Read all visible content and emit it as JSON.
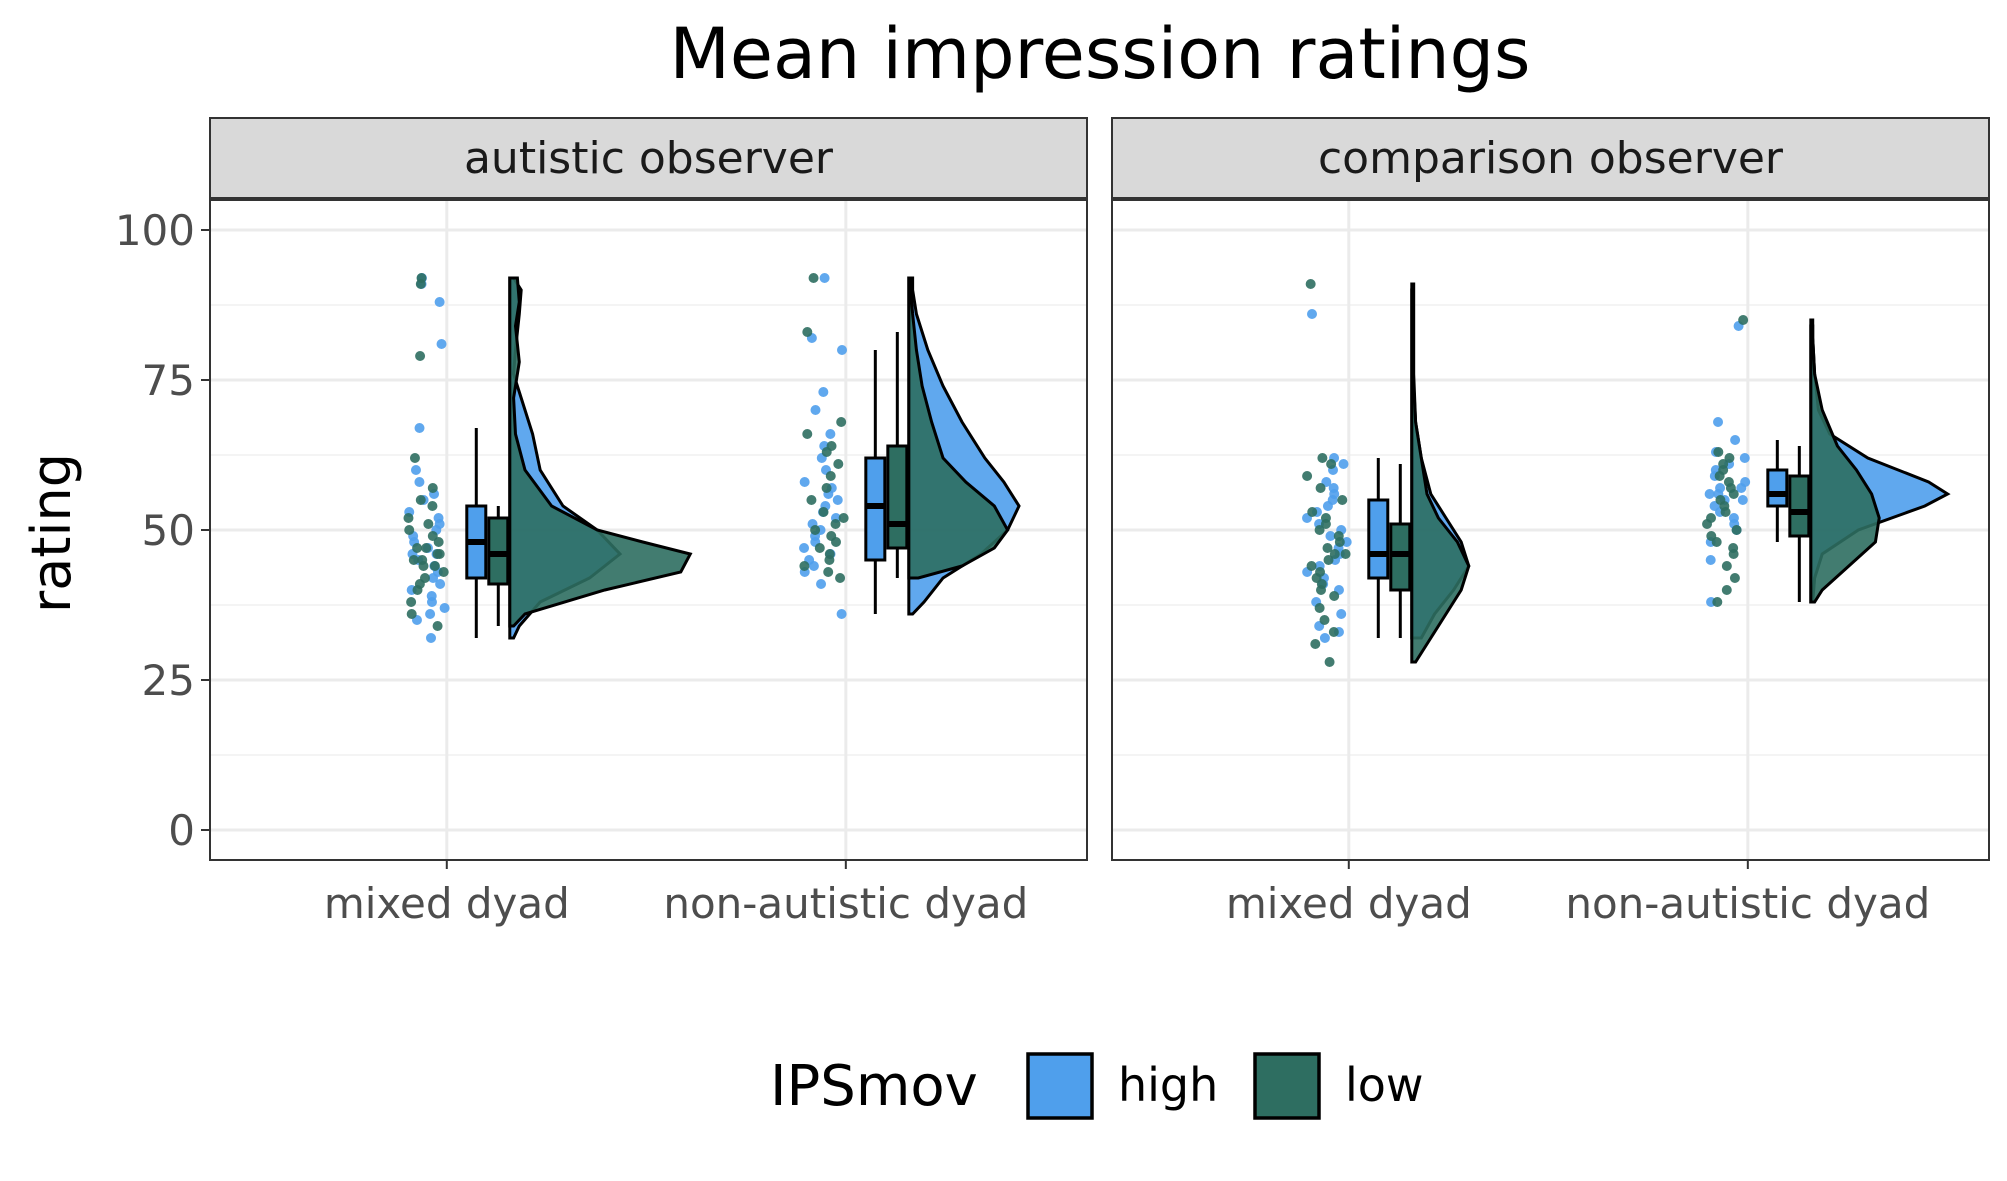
{
  "chart_data": {
    "type": "raincloud",
    "title": "Mean impression ratings",
    "ylabel": "rating",
    "xlabel": "",
    "ylim": [
      -5,
      105
    ],
    "yticks": [
      0,
      25,
      50,
      75,
      100
    ],
    "y_tick_labels": [
      "0",
      "25",
      "50",
      "75",
      "100"
    ],
    "categories": [
      "mixed dyad",
      "non-autistic dyad"
    ],
    "grid": true,
    "legend": {
      "title": "IPSmov",
      "placement": "bottom",
      "entries": [
        {
          "name": "high",
          "color": "#4f9fec"
        },
        {
          "name": "low",
          "color": "#2e6e61"
        }
      ]
    },
    "panels": [
      {
        "label": "autistic observer",
        "groups": [
          {
            "category": "mixed dyad",
            "series": [
              {
                "name": "high",
                "box": {
                  "min": 32,
                  "q1": 42,
                  "median": 48,
                  "q3": 54,
                  "max": 67
                },
                "density": [
                  [
                    32,
                    0.02
                  ],
                  [
                    34,
                    0.05
                  ],
                  [
                    38,
                    0.16
                  ],
                  [
                    42,
                    0.42
                  ],
                  [
                    46,
                    0.58
                  ],
                  [
                    50,
                    0.46
                  ],
                  [
                    54,
                    0.28
                  ],
                  [
                    60,
                    0.16
                  ],
                  [
                    66,
                    0.12
                  ],
                  [
                    72,
                    0.06
                  ],
                  [
                    76,
                    0.02
                  ],
                  [
                    80,
                    0.03
                  ],
                  [
                    86,
                    0.05
                  ],
                  [
                    90,
                    0.06
                  ],
                  [
                    92,
                    0.02
                  ]
                ],
                "points": [
                  32,
                  35,
                  36,
                  37,
                  38,
                  39,
                  40,
                  41,
                  42,
                  43,
                  44,
                  45,
                  46,
                  46,
                  47,
                  48,
                  49,
                  50,
                  51,
                  52,
                  53,
                  55,
                  56,
                  58,
                  60,
                  67,
                  81,
                  88,
                  91,
                  92
                ]
              },
              {
                "name": "low",
                "box": {
                  "min": 34,
                  "q1": 41,
                  "median": 46,
                  "q3": 52,
                  "max": 54
                },
                "density": [
                  [
                    34,
                    0.02
                  ],
                  [
                    36,
                    0.08
                  ],
                  [
                    40,
                    0.5
                  ],
                  [
                    43,
                    0.9
                  ],
                  [
                    46,
                    0.95
                  ],
                  [
                    48,
                    0.7
                  ],
                  [
                    50,
                    0.46
                  ],
                  [
                    54,
                    0.22
                  ],
                  [
                    60,
                    0.08
                  ],
                  [
                    66,
                    0.03
                  ],
                  [
                    72,
                    0.02
                  ],
                  [
                    78,
                    0.05
                  ],
                  [
                    84,
                    0.03
                  ],
                  [
                    88,
                    0.05
                  ],
                  [
                    92,
                    0.04
                  ]
                ],
                "points": [
                  34,
                  36,
                  38,
                  40,
                  41,
                  42,
                  43,
                  44,
                  44,
                  45,
                  45,
                  46,
                  46,
                  47,
                  47,
                  48,
                  49,
                  50,
                  51,
                  52,
                  54,
                  55,
                  57,
                  62,
                  79,
                  91,
                  92
                ]
              }
            ]
          },
          {
            "category": "non-autistic dyad",
            "series": [
              {
                "name": "high",
                "box": {
                  "min": 36,
                  "q1": 45,
                  "median": 54,
                  "q3": 62,
                  "max": 80
                },
                "density": [
                  [
                    36,
                    0.02
                  ],
                  [
                    38,
                    0.08
                  ],
                  [
                    42,
                    0.18
                  ],
                  [
                    46,
                    0.38
                  ],
                  [
                    50,
                    0.52
                  ],
                  [
                    54,
                    0.58
                  ],
                  [
                    58,
                    0.5
                  ],
                  [
                    62,
                    0.4
                  ],
                  [
                    68,
                    0.28
                  ],
                  [
                    74,
                    0.18
                  ],
                  [
                    80,
                    0.1
                  ],
                  [
                    86,
                    0.04
                  ],
                  [
                    90,
                    0.02
                  ],
                  [
                    92,
                    0.02
                  ]
                ],
                "points": [
                  36,
                  41,
                  43,
                  44,
                  45,
                  46,
                  47,
                  48,
                  49,
                  50,
                  51,
                  52,
                  53,
                  54,
                  55,
                  56,
                  57,
                  58,
                  60,
                  62,
                  64,
                  66,
                  70,
                  73,
                  80,
                  82,
                  92
                ]
              },
              {
                "name": "low",
                "box": {
                  "min": 42,
                  "q1": 47,
                  "median": 51,
                  "q3": 64,
                  "max": 83
                },
                "density": [
                  [
                    42,
                    0.05
                  ],
                  [
                    44,
                    0.28
                  ],
                  [
                    47,
                    0.45
                  ],
                  [
                    50,
                    0.52
                  ],
                  [
                    54,
                    0.45
                  ],
                  [
                    58,
                    0.3
                  ],
                  [
                    62,
                    0.18
                  ],
                  [
                    68,
                    0.12
                  ],
                  [
                    74,
                    0.07
                  ],
                  [
                    80,
                    0.04
                  ],
                  [
                    86,
                    0.02
                  ],
                  [
                    90,
                    0.01
                  ],
                  [
                    92,
                    0.01
                  ]
                ],
                "points": [
                  42,
                  43,
                  44,
                  45,
                  46,
                  47,
                  48,
                  49,
                  50,
                  51,
                  52,
                  53,
                  55,
                  57,
                  59,
                  61,
                  63,
                  64,
                  66,
                  68,
                  83,
                  92
                ]
              }
            ]
          }
        ]
      },
      {
        "label": "comparison observer",
        "groups": [
          {
            "category": "mixed dyad",
            "series": [
              {
                "name": "high",
                "box": {
                  "min": 32,
                  "q1": 42,
                  "median": 46,
                  "q3": 55,
                  "max": 62
                },
                "density": [
                  [
                    32,
                    0.05
                  ],
                  [
                    36,
                    0.12
                  ],
                  [
                    40,
                    0.22
                  ],
                  [
                    44,
                    0.3
                  ],
                  [
                    48,
                    0.26
                  ],
                  [
                    52,
                    0.18
                  ],
                  [
                    56,
                    0.1
                  ],
                  [
                    62,
                    0.05
                  ],
                  [
                    68,
                    0.02
                  ],
                  [
                    74,
                    0.01
                  ],
                  [
                    80,
                    0.005
                  ],
                  [
                    86,
                    0.005
                  ],
                  [
                    90,
                    0.005
                  ]
                ],
                "points": [
                  32,
                  33,
                  34,
                  36,
                  38,
                  40,
                  41,
                  42,
                  43,
                  44,
                  45,
                  46,
                  47,
                  48,
                  49,
                  50,
                  51,
                  52,
                  53,
                  54,
                  55,
                  56,
                  57,
                  58,
                  60,
                  61,
                  62,
                  86
                ]
              },
              {
                "name": "low",
                "box": {
                  "min": 32,
                  "q1": 40,
                  "median": 46,
                  "q3": 51,
                  "max": 61
                },
                "density": [
                  [
                    28,
                    0.02
                  ],
                  [
                    32,
                    0.1
                  ],
                  [
                    36,
                    0.18
                  ],
                  [
                    40,
                    0.26
                  ],
                  [
                    44,
                    0.3
                  ],
                  [
                    48,
                    0.24
                  ],
                  [
                    52,
                    0.14
                  ],
                  [
                    56,
                    0.08
                  ],
                  [
                    62,
                    0.05
                  ],
                  [
                    68,
                    0.02
                  ],
                  [
                    76,
                    0.01
                  ],
                  [
                    86,
                    0.01
                  ],
                  [
                    91,
                    0.01
                  ]
                ],
                "points": [
                  28,
                  31,
                  33,
                  35,
                  37,
                  39,
                  40,
                  41,
                  42,
                  43,
                  44,
                  45,
                  46,
                  46,
                  47,
                  48,
                  49,
                  50,
                  51,
                  52,
                  53,
                  55,
                  57,
                  59,
                  61,
                  62,
                  91
                ]
              }
            ]
          },
          {
            "category": "non-autistic dyad",
            "series": [
              {
                "name": "high",
                "box": {
                  "min": 48,
                  "q1": 54,
                  "median": 56,
                  "q3": 60,
                  "max": 65
                },
                "density": [
                  [
                    38,
                    0.01
                  ],
                  [
                    42,
                    0.02
                  ],
                  [
                    46,
                    0.06
                  ],
                  [
                    50,
                    0.25
                  ],
                  [
                    54,
                    0.6
                  ],
                  [
                    56,
                    0.72
                  ],
                  [
                    58,
                    0.62
                  ],
                  [
                    62,
                    0.3
                  ],
                  [
                    66,
                    0.1
                  ],
                  [
                    70,
                    0.04
                  ],
                  [
                    76,
                    0.02
                  ],
                  [
                    82,
                    0.01
                  ],
                  [
                    84,
                    0.01
                  ]
                ],
                "points": [
                  38,
                  45,
                  48,
                  50,
                  51,
                  52,
                  53,
                  54,
                  55,
                  55,
                  56,
                  56,
                  57,
                  57,
                  58,
                  59,
                  60,
                  61,
                  62,
                  63,
                  65,
                  68,
                  84
                ]
              },
              {
                "name": "low",
                "box": {
                  "min": 38,
                  "q1": 49,
                  "median": 53,
                  "q3": 59,
                  "max": 64
                },
                "density": [
                  [
                    38,
                    0.02
                  ],
                  [
                    40,
                    0.06
                  ],
                  [
                    44,
                    0.2
                  ],
                  [
                    48,
                    0.34
                  ],
                  [
                    52,
                    0.36
                  ],
                  [
                    56,
                    0.32
                  ],
                  [
                    60,
                    0.24
                  ],
                  [
                    64,
                    0.14
                  ],
                  [
                    70,
                    0.06
                  ],
                  [
                    76,
                    0.02
                  ],
                  [
                    82,
                    0.01
                  ],
                  [
                    85,
                    0.01
                  ]
                ],
                "points": [
                  38,
                  40,
                  42,
                  44,
                  46,
                  47,
                  48,
                  49,
                  50,
                  51,
                  52,
                  53,
                  54,
                  55,
                  56,
                  57,
                  58,
                  59,
                  60,
                  61,
                  62,
                  63,
                  85
                ]
              }
            ]
          }
        ]
      }
    ]
  }
}
